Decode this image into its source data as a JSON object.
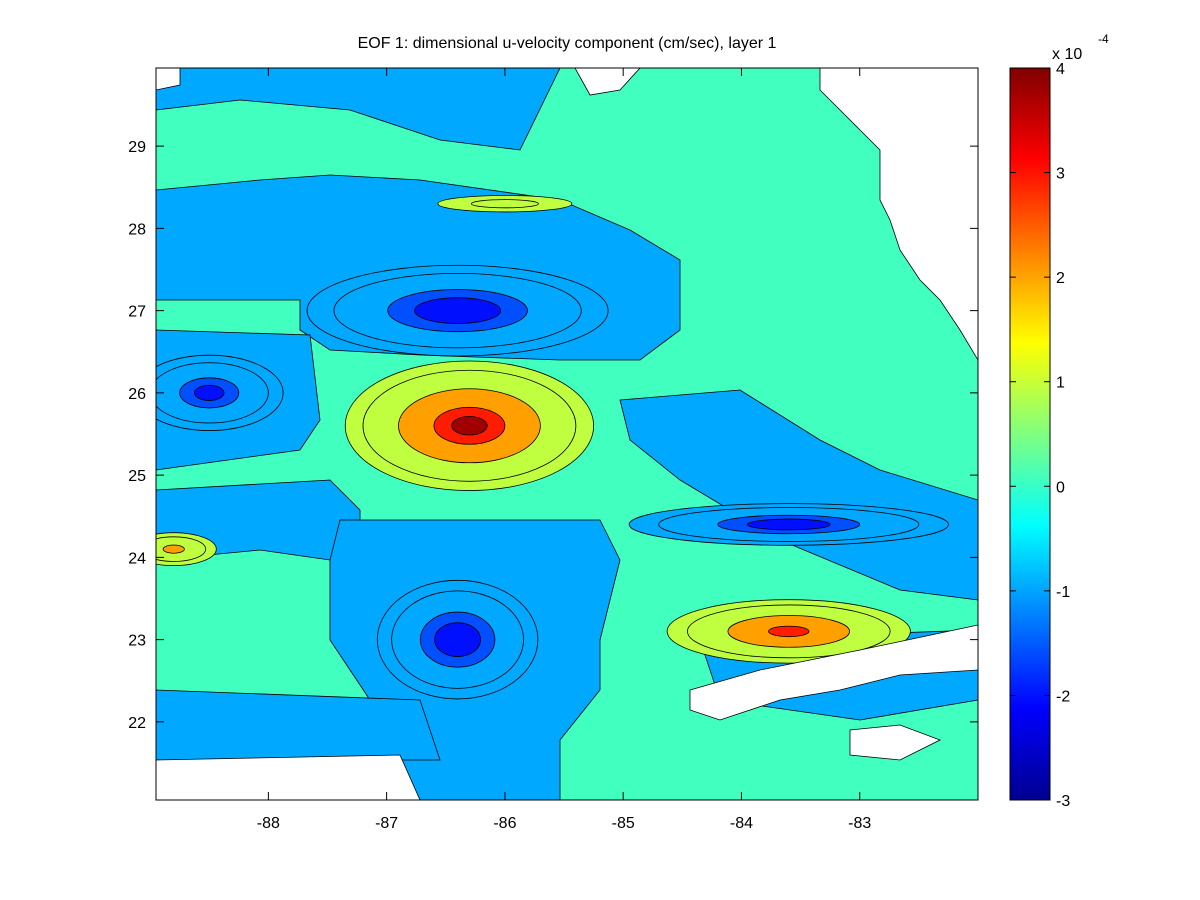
{
  "chart_data": {
    "type": "heatmap",
    "title": "EOF 1: dimensional u-velocity component (cm/sec), layer 1",
    "xlabel": "",
    "ylabel": "",
    "x_ticks": [
      -88,
      -87,
      -86,
      -85,
      -84,
      -83
    ],
    "y_ticks": [
      22,
      23,
      24,
      25,
      26,
      27,
      28,
      29
    ],
    "xlim": [
      -88.95,
      -82.0
    ],
    "ylim": [
      21.05,
      29.95
    ],
    "colorbar": {
      "min": -3,
      "max": 4,
      "ticks": [
        -3,
        -2,
        -1,
        0,
        1,
        2,
        3,
        4
      ],
      "exponent_label": "x 10",
      "exponent": "-4",
      "colormap": "jet"
    },
    "level_colors": {
      "-3": "#00008f",
      "-2.5": "#0010ff",
      "-2": "#0050ff",
      "-1": "#00a8ff",
      "0": "#40ffbf",
      "1": "#c0ff40",
      "2": "#ffa000",
      "3": "#ff1c00",
      "3.5": "#a00000",
      "land": "#ffffff"
    },
    "features": [
      {
        "name": "eddy-positive-center",
        "lon": -86.3,
        "lat": 25.6,
        "value": 3.6,
        "rx": 1.2,
        "ry": 0.9
      },
      {
        "name": "eddy-negative-north",
        "lon": -86.4,
        "lat": 27.0,
        "value": -2.9,
        "rx": 1.5,
        "ry": 0.65
      },
      {
        "name": "eddy-negative-west",
        "lon": -88.5,
        "lat": 26.0,
        "value": -2.6,
        "rx": 0.75,
        "ry": 0.55
      },
      {
        "name": "eddy-negative-south",
        "lon": -86.4,
        "lat": 23.0,
        "value": -2.9,
        "rx": 0.8,
        "ry": 0.85
      },
      {
        "name": "eddy-positive-southeast",
        "lon": -83.6,
        "lat": 23.1,
        "value": 3.1,
        "rx": 1.2,
        "ry": 0.45
      },
      {
        "name": "band-negative-east",
        "lon": -83.6,
        "lat": 24.4,
        "value": -2.8,
        "rx": 1.6,
        "ry": 0.3
      },
      {
        "name": "eddy-positive-west-edge",
        "lon": -88.8,
        "lat": 24.1,
        "value": 2.1,
        "rx": 0.45,
        "ry": 0.25
      },
      {
        "name": "band-positive-north",
        "lon": -86.0,
        "lat": 28.3,
        "value": 1.1,
        "rx": 0.85,
        "ry": 0.15
      }
    ]
  }
}
